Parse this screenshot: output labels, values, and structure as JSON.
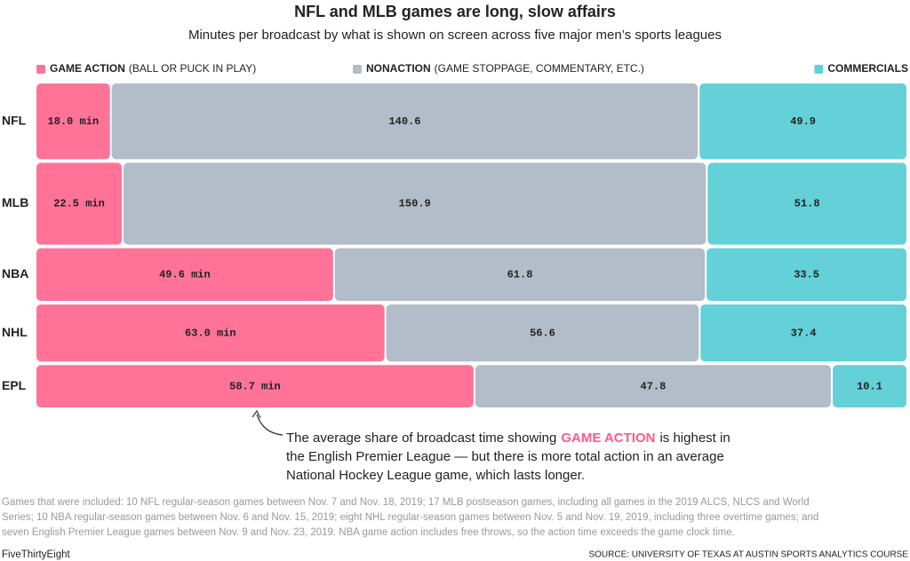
{
  "chart_data": {
    "type": "marimekko",
    "title": "NFL and MLB games are long, slow affairs",
    "subtitle": "Minutes per broadcast by what is shown on screen across five major men’s sports leagues",
    "categories": [
      "NFL",
      "MLB",
      "NBA",
      "NHL",
      "EPL"
    ],
    "series": [
      {
        "name": "GAME ACTION",
        "legend_detail": "(BALL OR PUCK IN PLAY)",
        "color": "#ff7399",
        "values": [
          18.0,
          22.5,
          49.6,
          63.0,
          58.7
        ],
        "value_labels": [
          "18.0 min",
          "22.5 min",
          "49.6 min",
          "63.0 min",
          "58.7 min"
        ]
      },
      {
        "name": "NONACTION",
        "legend_detail": "(GAME STOPPAGE, COMMENTARY, ETC.)",
        "color": "#b3bcc9",
        "values": [
          140.6,
          150.9,
          61.8,
          56.6,
          47.8
        ]
      },
      {
        "name": "COMMERCIALS",
        "color": "#63d1d7",
        "values": [
          49.9,
          51.8,
          33.5,
          37.4,
          10.1
        ]
      }
    ],
    "annotation": [
      "The average share of broadcast time showing",
      "GAME ACTION",
      "is highest in",
      "the English Premier League — but there is more total action in an average",
      "National Hockey League game, which lasts longer."
    ],
    "notes": [
      "Games that were included: 10 NFL regular-season games between Nov. 7 and Nov. 18, 2019; 17 MLB postseason games, including all games in the 2019 ALCS, NLCS and World",
      "Series; 10 NBA regular-season games between Nov. 6 and Nov. 15, 2019; eight NHL regular-season games between Nov. 5 and Nov. 19, 2019, including three overtime games; and",
      "seven English Premier League games between Nov. 9 and Nov. 23, 2019. NBA game action includes free throws, so the action time exceeds the game clock time."
    ],
    "credit": "FiveThirtyEight",
    "source": "SOURCE: UNIVERSITY OF TEXAS AT AUSTIN SPORTS ANALYTICS COURSE"
  }
}
